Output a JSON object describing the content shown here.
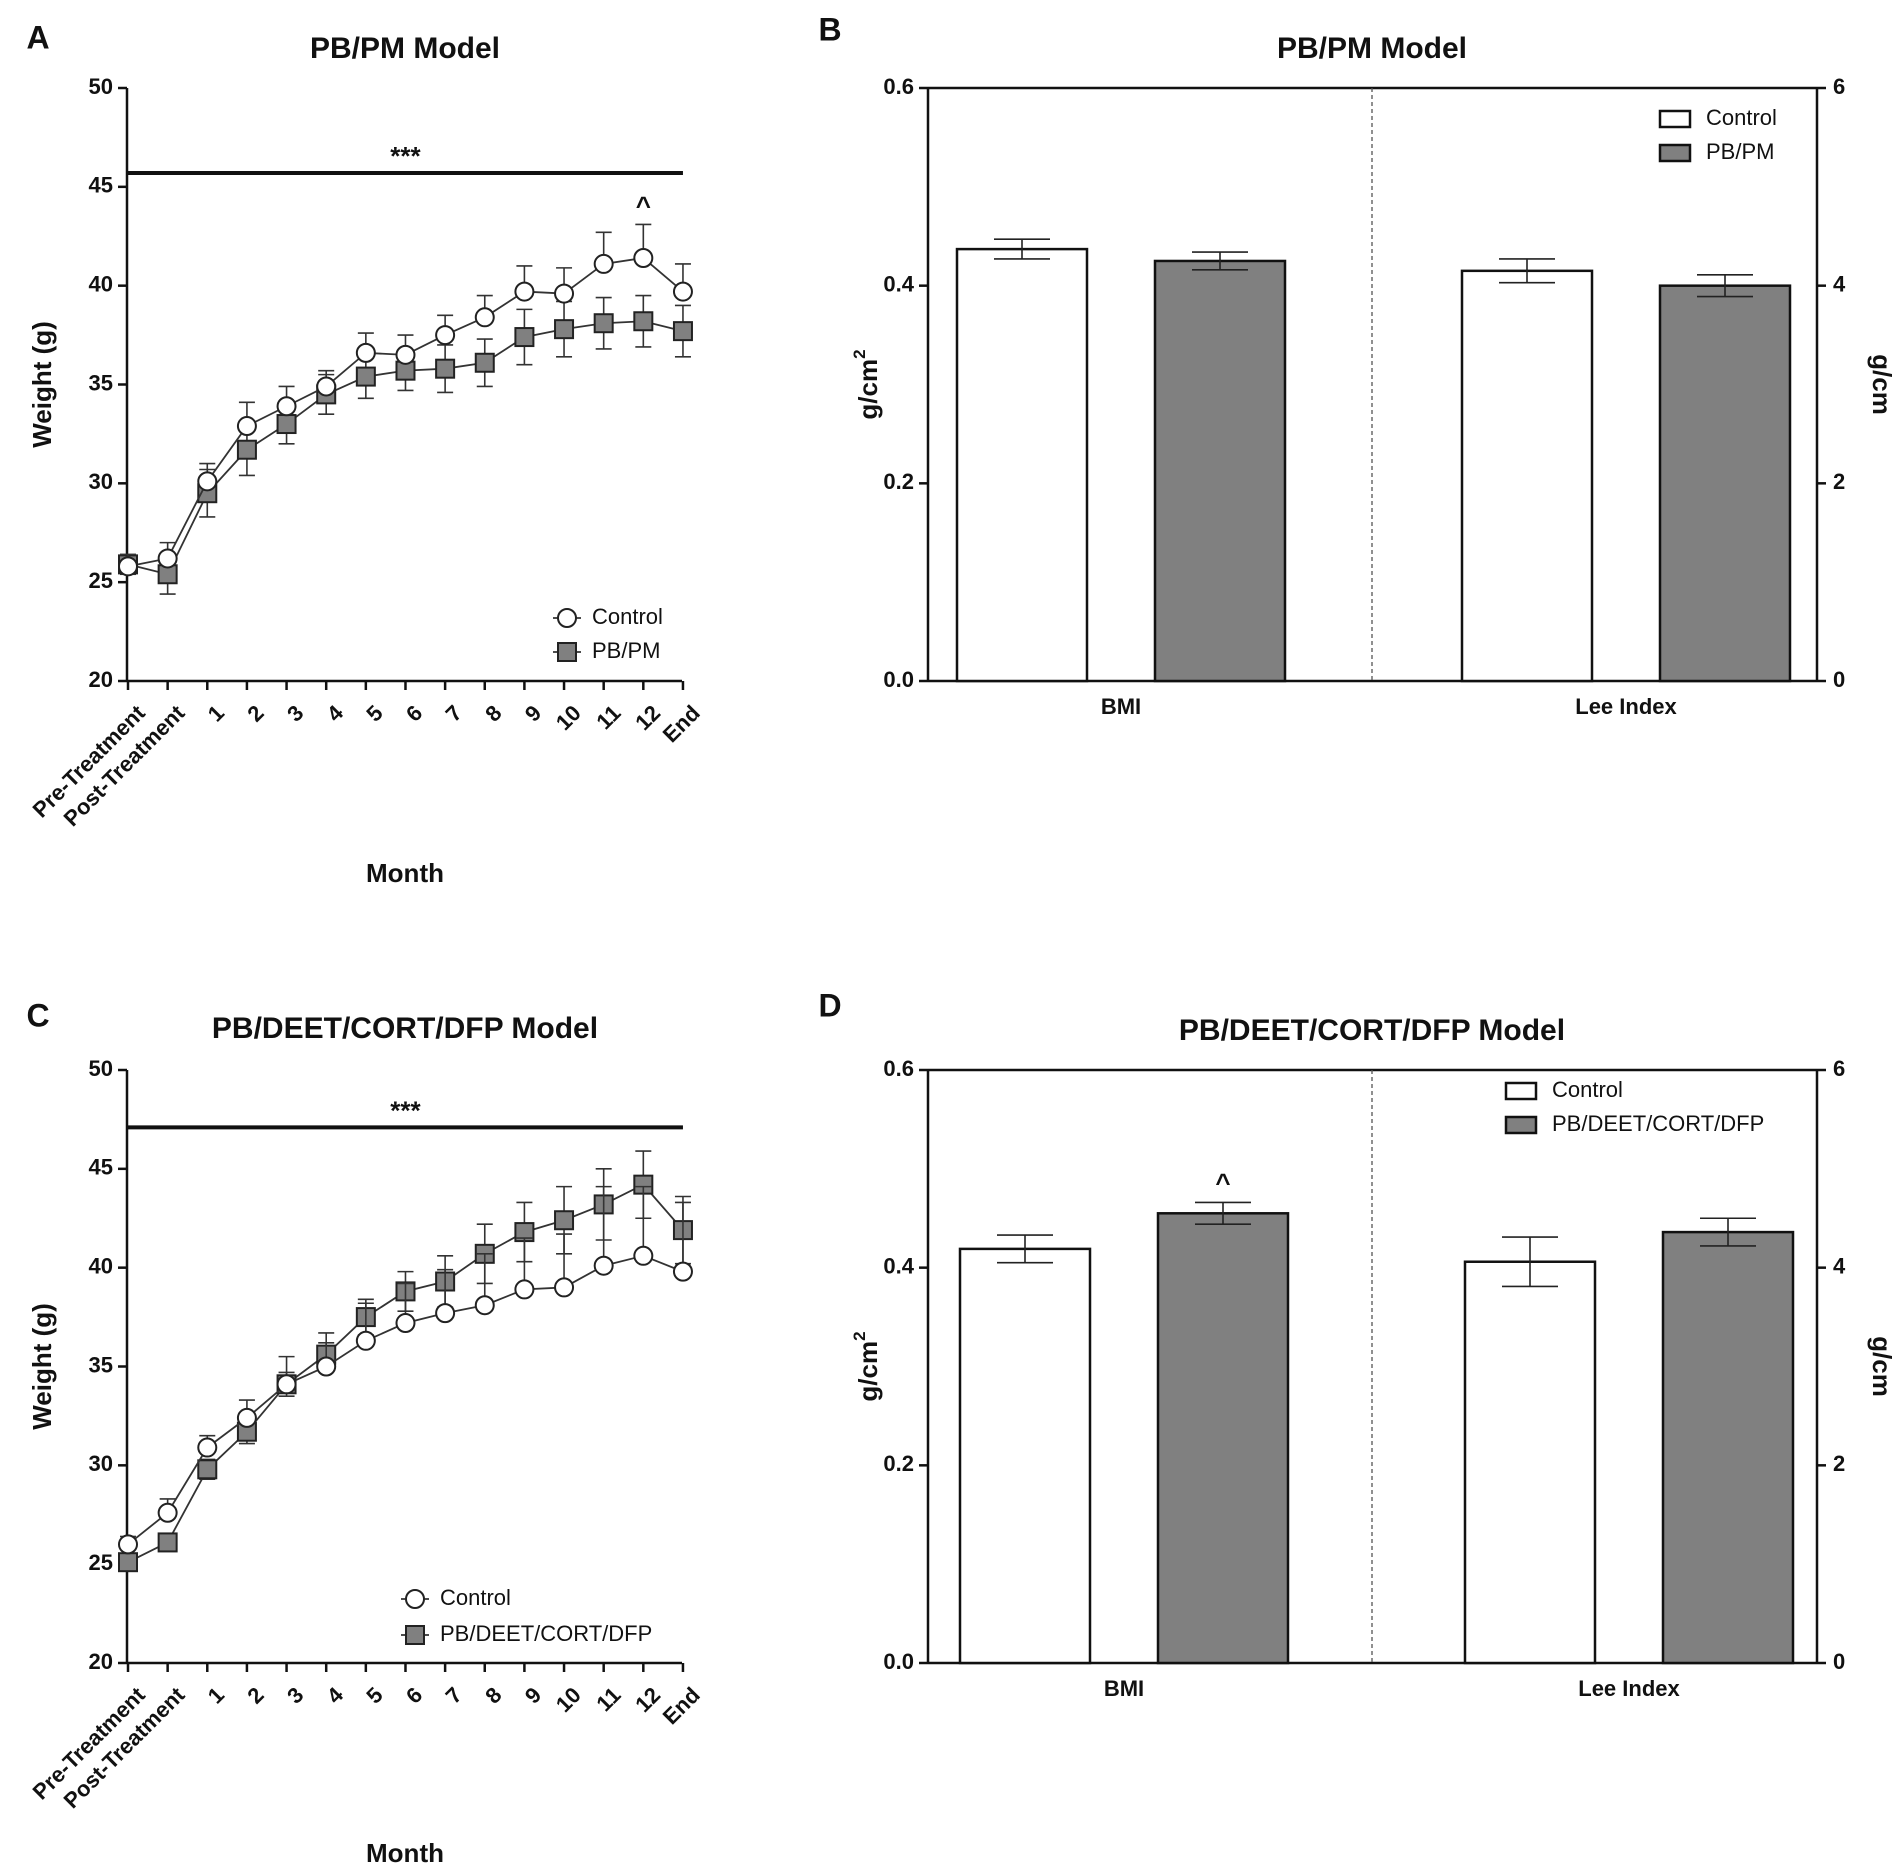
{
  "chart_data": [
    {
      "id": "A",
      "type": "line",
      "panel_label": "A",
      "title": "PB/PM Model",
      "xlabel": "Month",
      "ylabel": "Weight (g)",
      "ylim": [
        20,
        50
      ],
      "yticks": [
        20,
        25,
        30,
        35,
        40,
        45,
        50
      ],
      "categories": [
        "Pre-Treatment",
        "Post-Treatment",
        "1",
        "2",
        "3",
        "4",
        "5",
        "6",
        "7",
        "8",
        "9",
        "10",
        "11",
        "12",
        "End"
      ],
      "series": [
        {
          "name": "Control",
          "marker": "circle",
          "fill": "#ffffff",
          "values": [
            25.8,
            26.2,
            30.1,
            32.9,
            33.9,
            34.9,
            36.6,
            36.5,
            37.5,
            38.4,
            39.7,
            39.6,
            41.1,
            41.4,
            39.7
          ],
          "errors": [
            0.6,
            0.8,
            0.9,
            1.2,
            1.0,
            0.8,
            1.0,
            1.0,
            1.0,
            1.1,
            1.3,
            1.3,
            1.6,
            1.7,
            1.4
          ]
        },
        {
          "name": "PB/PM",
          "marker": "square",
          "fill": "#808080",
          "values": [
            25.9,
            25.4,
            29.5,
            31.7,
            33.0,
            34.5,
            35.4,
            35.7,
            35.8,
            36.1,
            37.4,
            37.8,
            38.1,
            38.2,
            37.7
          ],
          "errors": [
            0.5,
            1.0,
            1.2,
            1.3,
            1.0,
            1.0,
            1.1,
            1.0,
            1.2,
            1.2,
            1.4,
            1.4,
            1.3,
            1.3,
            1.3
          ]
        }
      ],
      "significance": {
        "label": "***",
        "from": 0,
        "to": 14,
        "y": 45.7
      },
      "annotations": [
        {
          "text": "^",
          "category": 13,
          "y": 43.6
        }
      ],
      "legend": {
        "position": "bottom-right"
      }
    },
    {
      "id": "B",
      "type": "bar",
      "panel_label": "B",
      "title": "PB/PM Model",
      "categories": [
        "BMI",
        "Lee Index"
      ],
      "ylabel_left": "g/cm",
      "ylabel_left_sup": "2",
      "ylabel_right": "g/cm",
      "ylim": [
        0,
        0.6
      ],
      "yticks_left": [
        "0.0",
        "0.2",
        "0.4",
        "0.6"
      ],
      "yticks_right": [
        "0",
        "2",
        "4",
        "6"
      ],
      "series": [
        {
          "name": "Control",
          "fill": "#ffffff",
          "values": [
            0.437,
            0.415
          ],
          "errors": [
            0.01,
            0.012
          ]
        },
        {
          "name": "PB/PM",
          "fill": "#808080",
          "values": [
            0.425,
            0.4
          ],
          "errors": [
            0.009,
            0.011
          ]
        }
      ],
      "annotations": [],
      "legend": {
        "position": "top-right"
      }
    },
    {
      "id": "C",
      "type": "line",
      "panel_label": "C",
      "title": "PB/DEET/CORT/DFP Model",
      "xlabel": "Month",
      "ylabel": "Weight (g)",
      "ylim": [
        20,
        50
      ],
      "yticks": [
        20,
        25,
        30,
        35,
        40,
        45,
        50
      ],
      "categories": [
        "Pre-Treatment",
        "Post-Treatment",
        "1",
        "2",
        "3",
        "4",
        "5",
        "6",
        "7",
        "8",
        "9",
        "10",
        "11",
        "12",
        "End"
      ],
      "series": [
        {
          "name": "Control",
          "marker": "circle",
          "fill": "#ffffff",
          "values": [
            26.0,
            27.6,
            30.9,
            32.4,
            34.1,
            35.0,
            36.3,
            37.2,
            37.7,
            38.1,
            38.9,
            39.0,
            40.1,
            40.6,
            39.8
          ],
          "errors": [
            0.4,
            0.7,
            0.6,
            0.9,
            1.4,
            1.7,
            1.9,
            2.0,
            2.2,
            2.6,
            2.6,
            2.7,
            4.0,
            3.5,
            3.5
          ]
        },
        {
          "name": "PB/DEET/CORT/DFP",
          "marker": "square",
          "fill": "#808080",
          "values": [
            25.1,
            26.1,
            29.8,
            31.7,
            34.1,
            35.6,
            37.5,
            38.8,
            39.3,
            40.7,
            41.8,
            42.4,
            43.2,
            44.2,
            41.9
          ],
          "errors": [
            0.3,
            0.4,
            0.5,
            0.6,
            0.6,
            0.6,
            0.9,
            1.0,
            1.3,
            1.5,
            1.5,
            1.7,
            1.8,
            1.7,
            1.7
          ]
        }
      ],
      "significance": {
        "label": "***",
        "from": 0,
        "to": 14,
        "y": 47.1
      },
      "annotations": [],
      "legend": {
        "position": "bottom-right"
      }
    },
    {
      "id": "D",
      "type": "bar",
      "panel_label": "D",
      "title": "PB/DEET/CORT/DFP Model",
      "categories": [
        "BMI",
        "Lee Index"
      ],
      "ylabel_left": "g/cm",
      "ylabel_left_sup": "2",
      "ylabel_right": "g/cm",
      "ylim": [
        0,
        0.6
      ],
      "yticks_left": [
        "0.0",
        "0.2",
        "0.4",
        "0.6"
      ],
      "yticks_right": [
        "0",
        "2",
        "4",
        "6"
      ],
      "series": [
        {
          "name": "Control",
          "fill": "#ffffff",
          "values": [
            0.419,
            0.406
          ],
          "errors": [
            0.014,
            0.025
          ]
        },
        {
          "name": "PB/DEET/CORT/DFP",
          "fill": "#808080",
          "values": [
            0.455,
            0.436
          ],
          "errors": [
            0.011,
            0.014
          ]
        }
      ],
      "annotations": [
        {
          "text": "^",
          "category": 0,
          "series": 1,
          "y": 0.477
        }
      ],
      "legend": {
        "position": "top-right"
      }
    }
  ]
}
